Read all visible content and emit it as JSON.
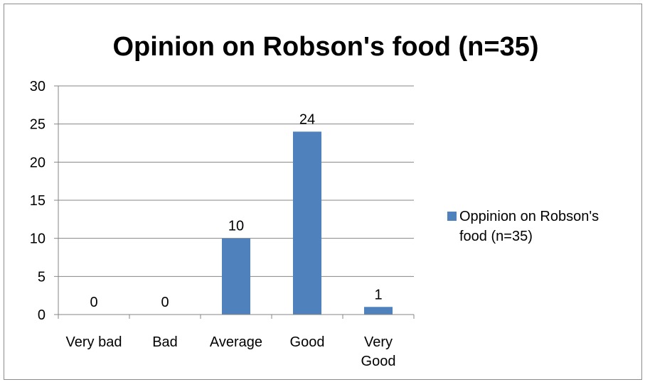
{
  "chart_data": {
    "type": "bar",
    "title": "Opinion on Robson's food (n=35)",
    "categories": [
      "Very bad",
      "Bad",
      "Average",
      "Good",
      "Very Good"
    ],
    "series": [
      {
        "name": "Oppinion on Robson's food (n=35)",
        "values": [
          0,
          0,
          10,
          24,
          1
        ],
        "color": "#4F81BD"
      }
    ],
    "ylim": [
      0,
      30
    ],
    "yticks": [
      0,
      5,
      10,
      15,
      20,
      25,
      30
    ],
    "grid": true,
    "legend_position": "right",
    "data_labels": true
  }
}
